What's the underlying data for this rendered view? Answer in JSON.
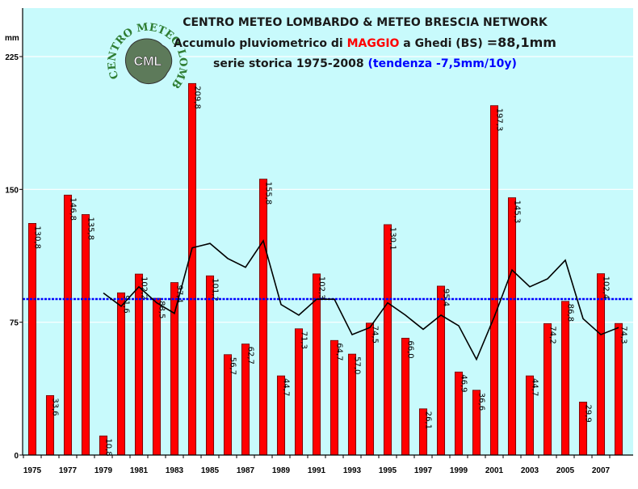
{
  "header": {
    "line1": "CENTRO METEO LOMBARDO & METEO BRESCIA NETWORK",
    "line2_prefix": "Accumulo pluviometrico di ",
    "line2_month": "MAGGIO",
    "line2_mid": " a Ghedi (BS) ",
    "line2_total": "=88,1mm",
    "line3_prefix": "serie storica 1975-2008 ",
    "line3_trend": "(tendenza -7,5mm/10y)"
  },
  "logo": {
    "circle_text": "CENTRO METEO LOMBARDO",
    "center_text": "CML"
  },
  "colors": {
    "plot_bg": "#c8fafc",
    "bar_fill": "#ff0000",
    "bar_stroke": "#660000",
    "mean_line": "#0000ff",
    "moving_avg": "#000000",
    "month_text": "#ff0000",
    "trend_text": "#0000ff"
  },
  "chart_data": {
    "type": "bar",
    "ylabel": "mm",
    "ylim": [
      0,
      225
    ],
    "yticks": [
      "0",
      "75",
      "150",
      "225"
    ],
    "x": [
      1975,
      1976,
      1977,
      1978,
      1979,
      1980,
      1981,
      1982,
      1983,
      1984,
      1985,
      1986,
      1987,
      1988,
      1989,
      1990,
      1991,
      1992,
      1993,
      1994,
      1995,
      1996,
      1997,
      1998,
      1999,
      2000,
      2001,
      2002,
      2003,
      2004,
      2005,
      2006,
      2007,
      2008
    ],
    "xtick_labels": [
      "1975",
      "1977",
      "1979",
      "1981",
      "1983",
      "1985",
      "1987",
      "1989",
      "1991",
      "1993",
      "1995",
      "1997",
      "1999",
      "2001",
      "2003",
      "2005",
      "2007"
    ],
    "values": [
      130.8,
      33.6,
      146.8,
      135.8,
      10.8,
      91.6,
      102.2,
      88.5,
      97.4,
      209.8,
      101.2,
      56.7,
      62.7,
      155.8,
      44.7,
      71.3,
      102.3,
      64.7,
      57.0,
      74.5,
      130.1,
      66.0,
      26.1,
      95.4,
      46.9,
      36.6,
      197.3,
      145.3,
      44.7,
      74.2,
      86.8,
      29.9,
      102.4,
      74.3
    ],
    "data_labels": [
      "130,8",
      "33,6",
      "146,8",
      "135,8",
      "10,8",
      "91,6",
      "102,2",
      "88,5",
      "97,4",
      "209,8",
      "101,2",
      "56,7",
      "62,7",
      "155,8",
      "44,7",
      "71,3",
      "102,3",
      "64,7",
      "57,0",
      "74,5",
      "130,1",
      "66,0",
      "26,1",
      "95,4",
      "46,9",
      "36,6",
      "197,3",
      "145,3",
      "44,7",
      "74,2",
      "86,8",
      "29,9",
      "102,4",
      "74,3"
    ],
    "mean_value": 88.1,
    "moving_average": {
      "x": [
        1979,
        1980,
        1981,
        1982,
        1983,
        1984,
        1985,
        1986,
        1987,
        1988,
        1989,
        1990,
        1991,
        1992,
        1993,
        1994,
        1995,
        1996,
        1997,
        1998,
        1999,
        2000,
        2001,
        2002,
        2003,
        2004,
        2005,
        2006,
        2007,
        2008
      ],
      "values": [
        91.5,
        84,
        95,
        86,
        80,
        117,
        119.5,
        111,
        106,
        121,
        85,
        79,
        88,
        88,
        68,
        72,
        86,
        79,
        71,
        79,
        73,
        54,
        78,
        104.5,
        95,
        99.5,
        110,
        77,
        68,
        72
      ]
    }
  }
}
